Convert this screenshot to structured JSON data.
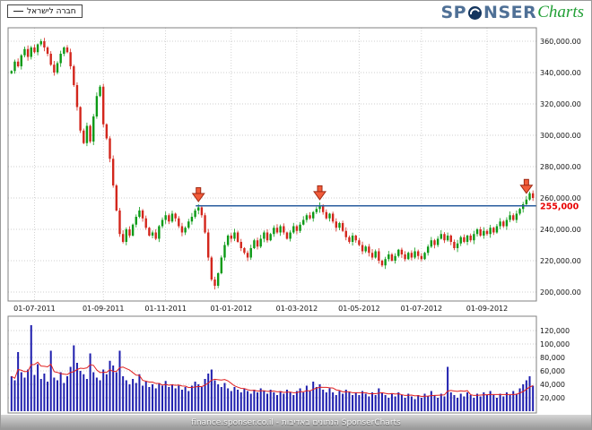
{
  "header": {
    "legend_label": "חברה לישראל",
    "logo": {
      "part1": "SP",
      "part2": "NSER",
      "part3": "Charts"
    }
  },
  "footer": {
    "text": "finance.sponser.co.il - הנתונים באדיבות SponserCharts"
  },
  "chart_data": {
    "type": "candlestick+volume",
    "title": "חברה לישראל",
    "values_unit": 1000,
    "price_axis": {
      "min": 200000,
      "max": 360000,
      "step": 20000,
      "values": [
        360000,
        340000,
        320000,
        300000,
        280000,
        260000,
        240000,
        220000,
        200000
      ],
      "labels": [
        "360,000.00",
        "340,000.00",
        "320,000.00",
        "300,000.00",
        "280,000.00",
        "260,000.00",
        "240,000.00",
        "220,000.00",
        "200,000.00"
      ]
    },
    "volume_axis": {
      "min": 20000,
      "max": 120000,
      "step": 20000,
      "values": [
        120000,
        100000,
        80000,
        60000,
        40000,
        20000
      ],
      "labels": [
        "120,000",
        "100,000",
        "80,000",
        "60,000",
        "40,000",
        "20,000"
      ]
    },
    "x_axis": {
      "ticks": [
        {
          "label": "01-07-2011",
          "index": 7
        },
        {
          "label": "01-09-2011",
          "index": 28
        },
        {
          "label": "01-11-2011",
          "index": 47
        },
        {
          "label": "01-01-2012",
          "index": 67
        },
        {
          "label": "01-03-2012",
          "index": 87
        },
        {
          "label": "01-05-2012",
          "index": 106
        },
        {
          "label": "01-07-2012",
          "index": 125
        },
        {
          "label": "01-09-2012",
          "index": 145
        }
      ]
    },
    "close": [
      341,
      347,
      344,
      351,
      355,
      350,
      356,
      353,
      358,
      360,
      356,
      352,
      345,
      340,
      346,
      352,
      356,
      353,
      344,
      332,
      318,
      303,
      295,
      306,
      296,
      312,
      325,
      331,
      307,
      298,
      285,
      268,
      252,
      237,
      232,
      240,
      236,
      243,
      248,
      252,
      247,
      241,
      236,
      238,
      234,
      242,
      246,
      249,
      245,
      250,
      247,
      242,
      238,
      241,
      245,
      248,
      252,
      254,
      249,
      238,
      222,
      208,
      204,
      212,
      222,
      230,
      236,
      234,
      238,
      232,
      228,
      225,
      222,
      228,
      233,
      229,
      234,
      238,
      233,
      237,
      241,
      238,
      242,
      238,
      234,
      238,
      242,
      239,
      243,
      246,
      249,
      247,
      251,
      253,
      255,
      251,
      247,
      250,
      245,
      241,
      244,
      239,
      235,
      232,
      236,
      233,
      230,
      226,
      229,
      225,
      222,
      226,
      220,
      217,
      221,
      224,
      220,
      223,
      227,
      224,
      221,
      225,
      222,
      226,
      223,
      221,
      225,
      229,
      233,
      230,
      234,
      237,
      233,
      236,
      232,
      228,
      231,
      235,
      232,
      236,
      233,
      237,
      240,
      236,
      239,
      237,
      241,
      238,
      242,
      245,
      242,
      246,
      249,
      246,
      250,
      253,
      256,
      259,
      263,
      260
    ],
    "volume": [
      52,
      46,
      88,
      58,
      50,
      62,
      128,
      54,
      70,
      48,
      56,
      44,
      90,
      50,
      46,
      58,
      42,
      52,
      66,
      98,
      72,
      60,
      55,
      48,
      86,
      58,
      50,
      46,
      62,
      55,
      75,
      68,
      58,
      90,
      52,
      46,
      40,
      48,
      42,
      55,
      38,
      44,
      36,
      40,
      34,
      42,
      38,
      45,
      36,
      40,
      34,
      38,
      32,
      36,
      30,
      38,
      44,
      40,
      36,
      48,
      56,
      62,
      46,
      40,
      36,
      42,
      34,
      30,
      36,
      32,
      28,
      34,
      30,
      26,
      32,
      28,
      34,
      30,
      26,
      32,
      28,
      24,
      30,
      26,
      32,
      28,
      24,
      30,
      34,
      28,
      38,
      30,
      44,
      36,
      40,
      32,
      28,
      34,
      28,
      24,
      30,
      26,
      32,
      28,
      24,
      28,
      24,
      30,
      26,
      22,
      28,
      24,
      34,
      28,
      24,
      20,
      26,
      22,
      28,
      24,
      20,
      26,
      22,
      18,
      24,
      20,
      26,
      22,
      30,
      24,
      20,
      26,
      22,
      66,
      28,
      24,
      20,
      26,
      22,
      28,
      24,
      20,
      26,
      22,
      28,
      24,
      30,
      24,
      20,
      26,
      22,
      28,
      24,
      30,
      26,
      34,
      40,
      46,
      52,
      38
    ],
    "hline": {
      "value": 255000,
      "label": "255,000",
      "start_index": 57
    },
    "arrows": {
      "indices": [
        57,
        94,
        157
      ]
    },
    "colors": {
      "up": "#0c9a16",
      "down": "#d3261c",
      "volume": "#1f1fae",
      "volume_ma": "#e02020",
      "hline": "#2a5d9f",
      "hline_label": "#e80000",
      "arrow_fill": "#f25c3a",
      "arrow_stroke": "#9e2914",
      "grid": "#c0c0c0",
      "border": "#808080",
      "axis_text": "#111111"
    }
  }
}
